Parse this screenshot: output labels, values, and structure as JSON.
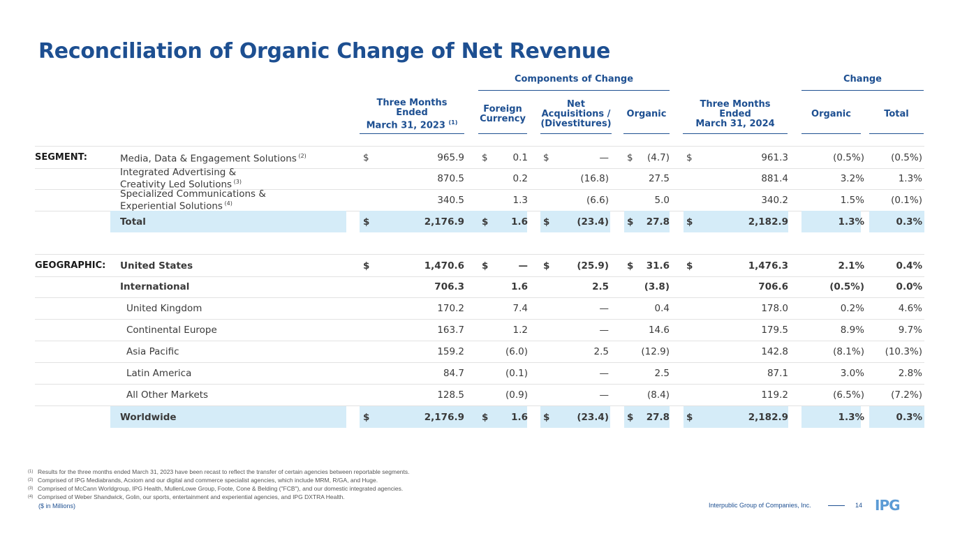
{
  "title": "Reconciliation of Organic Change of Net Revenue",
  "header": {
    "components_label": "Components of Change",
    "change_label": "Change",
    "col_2023": [
      "Three Months",
      "Ended",
      "March 31, 2023"
    ],
    "col_2023_sup": "(1)",
    "col_fx": [
      "Foreign",
      "Currency"
    ],
    "col_acq": [
      "Net",
      "Acquisitions /",
      "(Divestitures)"
    ],
    "col_organic": "Organic",
    "col_2024": [
      "Three Months",
      "Ended",
      "March 31, 2024"
    ],
    "col_chg_organic": "Organic",
    "col_chg_total": "Total"
  },
  "dollar_sign": "$",
  "rows": [
    {
      "section": "SEGMENT:",
      "label": [
        "Media, Data & Engagement Solutions"
      ],
      "sup": "(2)",
      "dollars": true,
      "values": [
        "965.9",
        "0.1",
        "—",
        "(4.7)",
        "961.3",
        "(0.5%)",
        "(0.5%)"
      ]
    },
    {
      "section": "",
      "label": [
        "Integrated Advertising &",
        "Creativity Led Solutions"
      ],
      "sup": "(3)",
      "dollars": false,
      "values": [
        "870.5",
        "0.2",
        "(16.8)",
        "27.5",
        "881.4",
        "3.2%",
        "1.3%"
      ]
    },
    {
      "section": "",
      "label": [
        "Specialized Communications &",
        "Experiential Solutions"
      ],
      "sup": "(4)",
      "dollars": false,
      "values": [
        "340.5",
        "1.3",
        "(6.6)",
        "5.0",
        "340.2",
        "1.5%",
        "(0.1%)"
      ]
    },
    {
      "section": "",
      "label": [
        "Total"
      ],
      "sup": "",
      "dollars": true,
      "values": [
        "2,176.9",
        "1.6",
        "(23.4)",
        "27.8",
        "2,182.9",
        "1.3%",
        "0.3%"
      ]
    },
    {
      "section": "GEOGRAPHIC:",
      "label": [
        "United States"
      ],
      "sup": "",
      "dollars": true,
      "values": [
        "1,470.6",
        "—",
        "(25.9)",
        "31.6",
        "1,476.3",
        "2.1%",
        "0.4%"
      ]
    },
    {
      "section": "",
      "label": [
        "International"
      ],
      "sup": "",
      "dollars": false,
      "values": [
        "706.3",
        "1.6",
        "2.5",
        "(3.8)",
        "706.6",
        "(0.5%)",
        "0.0%"
      ]
    },
    {
      "section": "",
      "label": [
        "United Kingdom"
      ],
      "sup": "",
      "dollars": false,
      "values": [
        "170.2",
        "7.4",
        "—",
        "0.4",
        "178.0",
        "0.2%",
        "4.6%"
      ]
    },
    {
      "section": "",
      "label": [
        "Continental Europe"
      ],
      "sup": "",
      "dollars": false,
      "values": [
        "163.7",
        "1.2",
        "—",
        "14.6",
        "179.5",
        "8.9%",
        "9.7%"
      ]
    },
    {
      "section": "",
      "label": [
        "Asia Pacific"
      ],
      "sup": "",
      "dollars": false,
      "values": [
        "159.2",
        "(6.0)",
        "2.5",
        "(12.9)",
        "142.8",
        "(8.1%)",
        "(10.3%)"
      ]
    },
    {
      "section": "",
      "label": [
        "Latin America"
      ],
      "sup": "",
      "dollars": false,
      "values": [
        "84.7",
        "(0.1)",
        "—",
        "2.5",
        "87.1",
        "3.0%",
        "2.8%"
      ]
    },
    {
      "section": "",
      "label": [
        "All Other Markets"
      ],
      "sup": "",
      "dollars": false,
      "values": [
        "128.5",
        "(0.9)",
        "—",
        "(8.4)",
        "119.2",
        "(6.5%)",
        "(7.2%)"
      ]
    },
    {
      "section": "",
      "label": [
        "Worldwide"
      ],
      "sup": "",
      "dollars": true,
      "values": [
        "2,176.9",
        "1.6",
        "(23.4)",
        "27.8",
        "2,182.9",
        "1.3%",
        "0.3%"
      ]
    }
  ],
  "footnotes": [
    {
      "mark": "(1)",
      "text": "Results for the three months ended March 31, 2023 have been recast to reflect the transfer of certain agencies between reportable segments."
    },
    {
      "mark": "(2)",
      "text": "Comprised of IPG Mediabrands, Acxiom and our digital and commerce specialist agencies, which include MRM, R/GA, and Huge."
    },
    {
      "mark": "(3)",
      "text": "Comprised of McCann Worldgroup, IPG Health, MullenLowe Group, Foote, Cone & Belding (\"FCB\"), and our domestic integrated agencies."
    },
    {
      "mark": "(4)",
      "text": "Comprised of Weber Shandwick, Golin, our sports, entertainment and experiential agencies, and IPG DXTRA Health."
    }
  ],
  "units_note": "($ in Millions)",
  "footer": {
    "company": "Interpublic Group of Companies, Inc.",
    "page": "14",
    "logo_text": "IPG"
  },
  "colors": {
    "brand_blue": "#1d4f91",
    "highlight": "#d5ecf8",
    "logo_blue": "#5b9bd5"
  }
}
